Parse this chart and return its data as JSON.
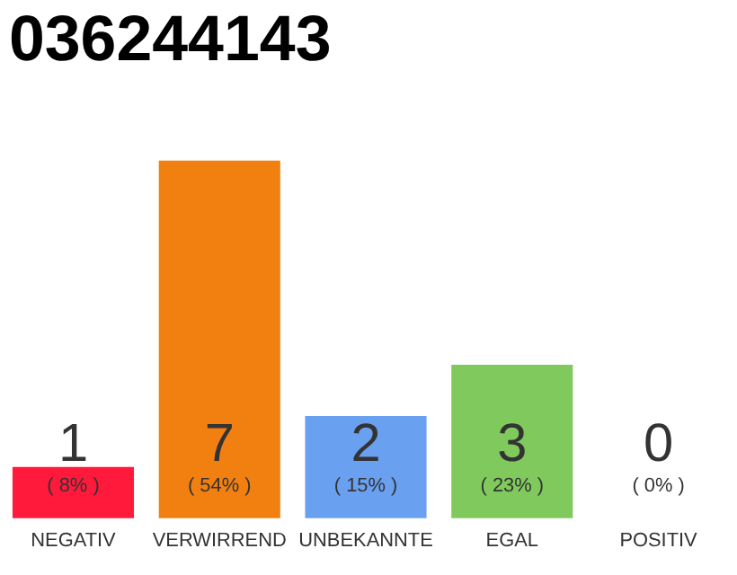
{
  "chart_data": {
    "type": "bar",
    "title": "036244143",
    "categories": [
      "NEGATIV",
      "VERWIRREND",
      "UNBEKANNTE",
      "EGAL",
      "POSITIV"
    ],
    "values": [
      1,
      7,
      2,
      3,
      0
    ],
    "colors": [
      "#ff1a3c",
      "#f28010",
      "#6aa0f0",
      "#80c95c",
      "#cccccc"
    ],
    "data_labels": true,
    "annotations": [
      "( 8% )",
      "( 54% )",
      "( 15% )",
      "( 23% )",
      "( 0% )"
    ],
    "tick_labels": "x",
    "grid": false
  }
}
